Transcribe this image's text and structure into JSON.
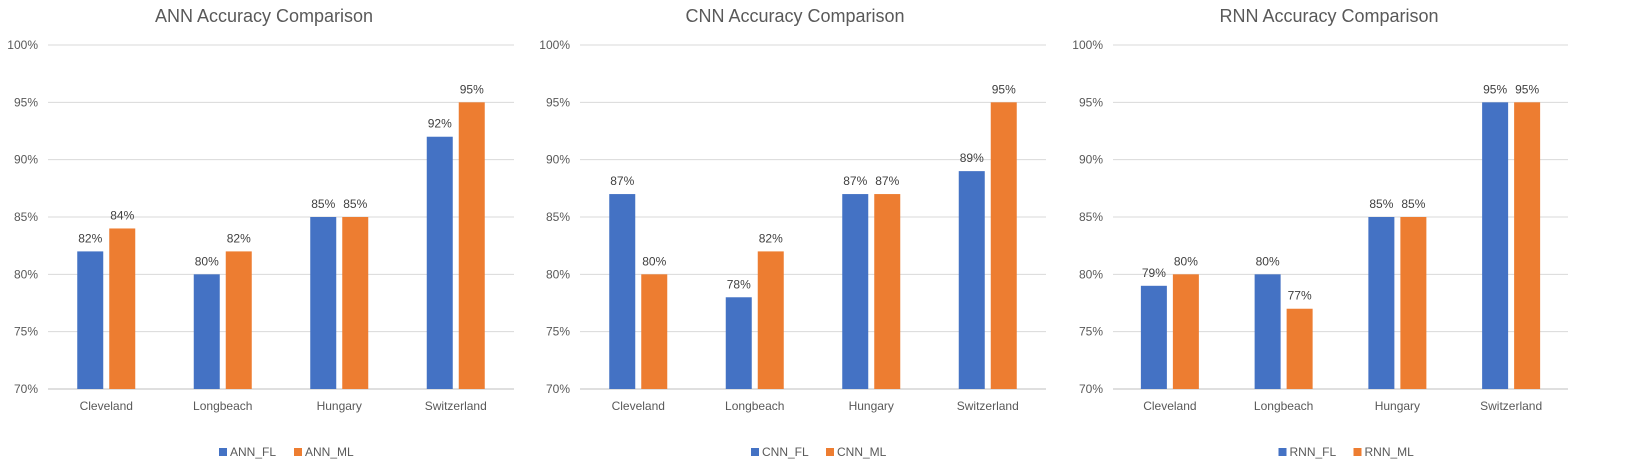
{
  "chart_data": [
    {
      "type": "bar",
      "title": "ANN Accuracy Comparison",
      "categories": [
        "Cleveland",
        "Longbeach",
        "Hungary",
        "Switzerland"
      ],
      "series": [
        {
          "name": "ANN_FL",
          "values": [
            82,
            80,
            85,
            92
          ],
          "labels": [
            "82%",
            "80%",
            "85%",
            "92%"
          ],
          "color": "#4472C4"
        },
        {
          "name": "ANN_ML",
          "values": [
            84,
            82,
            85,
            95
          ],
          "labels": [
            "84%",
            "82%",
            "85%",
            "95%"
          ],
          "color": "#ED7D31"
        }
      ],
      "ylim": [
        70,
        100
      ],
      "yticks": [
        "70%",
        "75%",
        "80%",
        "85%",
        "90%",
        "95%",
        "100%"
      ],
      "grid": true,
      "legend": "bottom"
    },
    {
      "type": "bar",
      "title": "CNN Accuracy Comparison",
      "categories": [
        "Cleveland",
        "Longbeach",
        "Hungary",
        "Switzerland"
      ],
      "series": [
        {
          "name": "CNN_FL",
          "values": [
            87,
            78,
            87,
            89
          ],
          "labels": [
            "87%",
            "78%",
            "87%",
            "89%"
          ],
          "color": "#4472C4"
        },
        {
          "name": "CNN_ML",
          "values": [
            80,
            82,
            87,
            95
          ],
          "labels": [
            "80%",
            "82%",
            "87%",
            "95%"
          ],
          "color": "#ED7D31"
        }
      ],
      "ylim": [
        70,
        100
      ],
      "yticks": [
        "70%",
        "75%",
        "80%",
        "85%",
        "90%",
        "95%",
        "100%"
      ],
      "grid": true,
      "legend": "bottom"
    },
    {
      "type": "bar",
      "title": "RNN Accuracy Comparison",
      "categories": [
        "Cleveland",
        "Longbeach",
        "Hungary",
        "Switzerland"
      ],
      "series": [
        {
          "name": "RNN_FL",
          "values": [
            79,
            80,
            85,
            95
          ],
          "labels": [
            "79%",
            "80%",
            "85%",
            "95%"
          ],
          "color": "#4472C4"
        },
        {
          "name": "RNN_ML",
          "values": [
            80,
            77,
            85,
            95
          ],
          "labels": [
            "80%",
            "77%",
            "85%",
            "95%"
          ],
          "color": "#ED7D31"
        }
      ],
      "ylim": [
        70,
        100
      ],
      "yticks": [
        "70%",
        "75%",
        "80%",
        "85%",
        "90%",
        "95%",
        "100%"
      ],
      "grid": true,
      "legend": "bottom"
    }
  ]
}
